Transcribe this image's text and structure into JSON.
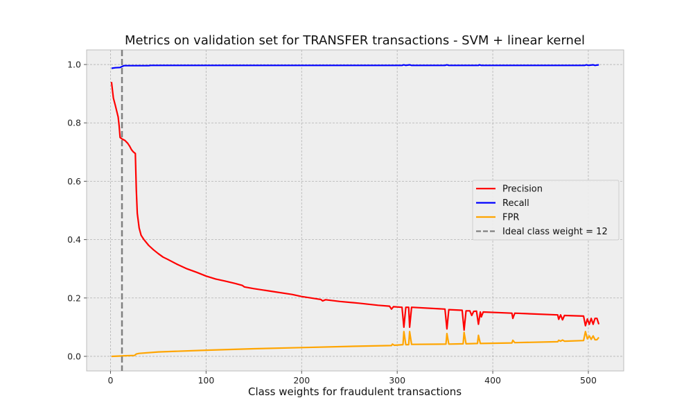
{
  "chart_data": {
    "type": "line",
    "title": "Metrics on validation set for TRANSFER transactions - SVM + linear kernel",
    "xlabel": "Class weights for fraudulent transactions",
    "ylabel": "",
    "xlim": [
      -25,
      537
    ],
    "ylim": [
      -0.05,
      1.05
    ],
    "xticks": [
      0,
      100,
      200,
      300,
      400,
      500
    ],
    "yticks": [
      0.0,
      0.2,
      0.4,
      0.6,
      0.8,
      1.0
    ],
    "xtick_labels": [
      "0",
      "100",
      "200",
      "300",
      "400",
      "500"
    ],
    "ytick_labels": [
      "0.0",
      "0.2",
      "0.4",
      "0.6",
      "0.8",
      "1.0"
    ],
    "grid": true,
    "legend_position": "center-right",
    "series": [
      {
        "name": "Precision",
        "color": "#ff0000",
        "points": [
          [
            1,
            0.94
          ],
          [
            3,
            0.885
          ],
          [
            5,
            0.86
          ],
          [
            8,
            0.82
          ],
          [
            9,
            0.79
          ],
          [
            10,
            0.75
          ],
          [
            12,
            0.745
          ],
          [
            15,
            0.74
          ],
          [
            18,
            0.73
          ],
          [
            20,
            0.72
          ],
          [
            22,
            0.708
          ],
          [
            24,
            0.7
          ],
          [
            26,
            0.695
          ],
          [
            27,
            0.57
          ],
          [
            28,
            0.49
          ],
          [
            30,
            0.44
          ],
          [
            32,
            0.415
          ],
          [
            35,
            0.4
          ],
          [
            40,
            0.38
          ],
          [
            45,
            0.365
          ],
          [
            50,
            0.352
          ],
          [
            55,
            0.34
          ],
          [
            60,
            0.332
          ],
          [
            70,
            0.315
          ],
          [
            80,
            0.3
          ],
          [
            90,
            0.288
          ],
          [
            100,
            0.275
          ],
          [
            110,
            0.265
          ],
          [
            120,
            0.258
          ],
          [
            130,
            0.25
          ],
          [
            138,
            0.243
          ],
          [
            140,
            0.238
          ],
          [
            150,
            0.232
          ],
          [
            170,
            0.222
          ],
          [
            190,
            0.212
          ],
          [
            200,
            0.205
          ],
          [
            220,
            0.195
          ],
          [
            222,
            0.19
          ],
          [
            225,
            0.194
          ],
          [
            240,
            0.188
          ],
          [
            260,
            0.182
          ],
          [
            280,
            0.175
          ],
          [
            292,
            0.172
          ],
          [
            294,
            0.162
          ],
          [
            296,
            0.17
          ],
          [
            305,
            0.168
          ],
          [
            307,
            0.1
          ],
          [
            309,
            0.168
          ],
          [
            312,
            0.168
          ],
          [
            313,
            0.1
          ],
          [
            315,
            0.168
          ],
          [
            350,
            0.162
          ],
          [
            352,
            0.094
          ],
          [
            354,
            0.16
          ],
          [
            368,
            0.158
          ],
          [
            370,
            0.09
          ],
          [
            372,
            0.156
          ],
          [
            376,
            0.156
          ],
          [
            378,
            0.14
          ],
          [
            380,
            0.154
          ],
          [
            383,
            0.155
          ],
          [
            385,
            0.11
          ],
          [
            387,
            0.152
          ],
          [
            388,
            0.135
          ],
          [
            390,
            0.152
          ],
          [
            420,
            0.148
          ],
          [
            421,
            0.13
          ],
          [
            423,
            0.148
          ],
          [
            468,
            0.142
          ],
          [
            469,
            0.127
          ],
          [
            471,
            0.142
          ],
          [
            473,
            0.125
          ],
          [
            475,
            0.14
          ],
          [
            495,
            0.138
          ],
          [
            497,
            0.105
          ],
          [
            499,
            0.128
          ],
          [
            501,
            0.11
          ],
          [
            503,
            0.13
          ],
          [
            505,
            0.11
          ],
          [
            507,
            0.13
          ],
          [
            509,
            0.13
          ],
          [
            511,
            0.11
          ]
        ]
      },
      {
        "name": "Recall",
        "color": "#0000ff",
        "points": [
          [
            1,
            0.987
          ],
          [
            5,
            0.989
          ],
          [
            10,
            0.99
          ],
          [
            12,
            0.993
          ],
          [
            14,
            0.996
          ],
          [
            40,
            0.996
          ],
          [
            42,
            0.997
          ],
          [
            300,
            0.997
          ],
          [
            305,
            0.997
          ],
          [
            307,
            0.999
          ],
          [
            309,
            0.997
          ],
          [
            313,
            0.999
          ],
          [
            315,
            0.997
          ],
          [
            350,
            0.997
          ],
          [
            352,
            0.999
          ],
          [
            354,
            0.997
          ],
          [
            385,
            0.997
          ],
          [
            386,
            0.999
          ],
          [
            388,
            0.997
          ],
          [
            496,
            0.997
          ],
          [
            498,
            0.999
          ],
          [
            500,
            0.997
          ],
          [
            505,
            0.999
          ],
          [
            507,
            0.997
          ],
          [
            511,
            0.999
          ]
        ]
      },
      {
        "name": "FPR",
        "color": "#ffa500",
        "points": [
          [
            1,
            0.0
          ],
          [
            10,
            0.001
          ],
          [
            15,
            0.002
          ],
          [
            25,
            0.003
          ],
          [
            27,
            0.008
          ],
          [
            30,
            0.01
          ],
          [
            50,
            0.015
          ],
          [
            100,
            0.021
          ],
          [
            150,
            0.026
          ],
          [
            200,
            0.03
          ],
          [
            250,
            0.034
          ],
          [
            294,
            0.037
          ],
          [
            295,
            0.042
          ],
          [
            297,
            0.038
          ],
          [
            306,
            0.04
          ],
          [
            307,
            0.085
          ],
          [
            309,
            0.04
          ],
          [
            312,
            0.04
          ],
          [
            313,
            0.085
          ],
          [
            315,
            0.041
          ],
          [
            351,
            0.042
          ],
          [
            352,
            0.078
          ],
          [
            354,
            0.042
          ],
          [
            369,
            0.043
          ],
          [
            370,
            0.082
          ],
          [
            372,
            0.043
          ],
          [
            384,
            0.044
          ],
          [
            385,
            0.072
          ],
          [
            387,
            0.044
          ],
          [
            420,
            0.046
          ],
          [
            421,
            0.055
          ],
          [
            423,
            0.047
          ],
          [
            468,
            0.05
          ],
          [
            469,
            0.055
          ],
          [
            471,
            0.052
          ],
          [
            473,
            0.056
          ],
          [
            475,
            0.052
          ],
          [
            495,
            0.054
          ],
          [
            497,
            0.085
          ],
          [
            499,
            0.06
          ],
          [
            501,
            0.07
          ],
          [
            503,
            0.058
          ],
          [
            505,
            0.07
          ],
          [
            507,
            0.057
          ],
          [
            509,
            0.057
          ],
          [
            511,
            0.065
          ]
        ]
      },
      {
        "name": "Ideal class weight = 12",
        "color": "#808080",
        "style": "dashed",
        "vertical_x": 12
      }
    ]
  }
}
